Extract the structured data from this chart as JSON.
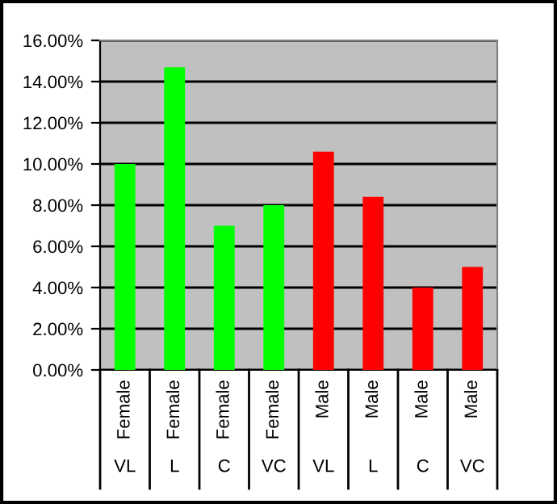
{
  "chart_data": {
    "type": "bar",
    "categories": [
      "Female\nVL",
      "Female\nL",
      "Female\nC",
      "Female\nVC",
      "Male\nVL",
      "Male\nL",
      "Male\nC",
      "Male\nVC"
    ],
    "values": [
      10.0,
      14.7,
      7.0,
      8.0,
      10.6,
      8.4,
      4.0,
      5.0
    ],
    "colors": [
      "#00ff00",
      "#00ff00",
      "#00ff00",
      "#00ff00",
      "#ff0000",
      "#ff0000",
      "#ff0000",
      "#ff0000"
    ],
    "ylim": [
      0,
      16
    ],
    "yticks": [
      {
        "value": 0,
        "label": "0.00%"
      },
      {
        "value": 2,
        "label": "2.00%"
      },
      {
        "value": 4,
        "label": "4.00%"
      },
      {
        "value": 6,
        "label": "6.00%"
      },
      {
        "value": 8,
        "label": "8.00%"
      },
      {
        "value": 10,
        "label": "10.00%"
      },
      {
        "value": 12,
        "label": "12.00%"
      },
      {
        "value": 14,
        "label": "14.00%"
      },
      {
        "value": 16,
        "label": "16.00%"
      }
    ],
    "grid": "y",
    "legend": false
  }
}
